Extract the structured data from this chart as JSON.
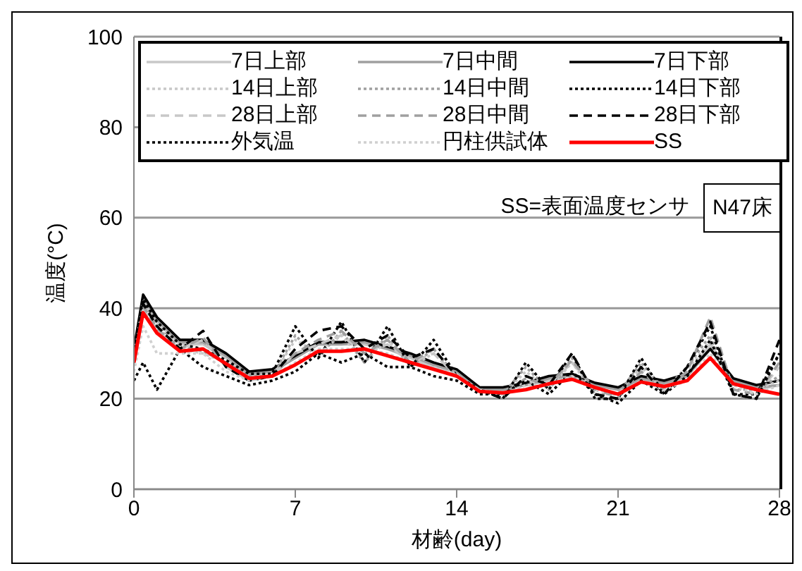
{
  "chart_data": {
    "type": "line",
    "xlabel": "材齢(day)",
    "ylabel": "温度(°C)",
    "x": [
      0,
      0.4,
      1,
      2,
      3,
      4,
      5,
      6,
      7,
      8,
      9,
      10,
      11,
      12,
      13,
      14,
      15,
      16,
      17,
      18,
      19,
      20,
      21,
      22,
      23,
      24,
      25,
      26,
      27,
      28
    ],
    "xlim": [
      0,
      28
    ],
    "xticks": [
      0,
      7,
      14,
      21,
      28
    ],
    "ylim": [
      0,
      100
    ],
    "yticks": [
      0,
      20,
      40,
      60,
      80,
      100
    ],
    "grid": "y",
    "legend": "top",
    "marker": "none",
    "annotations": [
      "SS=表面温度センサ",
      "N47床"
    ],
    "series": [
      {
        "name": "7日上部",
        "color": "#c8c8c8",
        "line_style": "solid",
        "values": [
          30,
          42,
          37,
          32,
          32,
          29,
          25,
          26,
          29,
          32,
          32,
          32,
          31,
          29,
          27,
          26,
          22,
          22,
          23,
          24,
          25,
          23,
          22,
          24,
          23,
          25,
          32,
          24,
          22,
          23
        ]
      },
      {
        "name": "7日中間",
        "color": "#a0a0a0",
        "line_style": "solid",
        "values": [
          30,
          42.5,
          37.5,
          32.5,
          32.5,
          29.5,
          25.5,
          26,
          29,
          32,
          32,
          32.5,
          31,
          29.5,
          27.5,
          26,
          22,
          22,
          23,
          24.5,
          25,
          23,
          22,
          24.5,
          23.5,
          25,
          31,
          24,
          22.5,
          23
        ]
      },
      {
        "name": "7日下部",
        "color": "#000000",
        "line_style": "solid",
        "values": [
          31,
          43,
          38,
          33,
          33,
          30,
          26,
          26.5,
          29.5,
          32.5,
          32.5,
          33,
          31.5,
          30,
          28,
          26.5,
          22.5,
          22.5,
          23.5,
          25,
          25.5,
          23.5,
          22.5,
          25,
          24,
          25.5,
          31,
          24.5,
          23,
          24
        ]
      },
      {
        "name": "14日上部",
        "color": "#c8c8c8",
        "line_style": "dotted",
        "values": [
          29,
          41,
          36,
          31,
          30,
          28,
          25,
          25,
          33,
          30,
          34,
          28,
          33,
          27,
          30,
          25,
          22,
          21,
          26,
          22,
          28,
          21,
          21,
          27,
          22,
          26,
          33,
          22,
          22,
          24
        ]
      },
      {
        "name": "14日中間",
        "color": "#a0a0a0",
        "line_style": "dotted",
        "values": [
          29,
          41.5,
          36.5,
          31.5,
          30.5,
          28,
          25,
          25,
          34,
          29,
          35,
          28,
          34,
          27,
          31,
          25,
          22,
          21,
          27,
          22,
          29,
          21,
          21,
          28,
          22,
          27,
          34,
          22,
          22,
          25
        ]
      },
      {
        "name": "14日下部",
        "color": "#000000",
        "line_style": "dotted",
        "values": [
          30,
          42,
          37,
          32,
          31,
          28.5,
          25.5,
          25.5,
          36,
          29,
          37,
          28,
          36,
          27,
          33,
          25,
          22,
          20,
          28,
          22,
          30,
          20,
          20,
          29,
          21,
          27,
          36,
          21,
          21,
          30
        ]
      },
      {
        "name": "28日上部",
        "color": "#c8c8c8",
        "line_style": "dashed",
        "values": [
          28,
          40,
          35,
          31,
          33,
          27,
          24,
          25,
          30,
          32,
          34,
          30,
          32,
          28,
          30,
          25,
          22,
          21,
          24,
          23,
          28,
          22,
          21,
          26,
          22,
          26,
          38,
          22,
          21,
          27
        ]
      },
      {
        "name": "28日中間",
        "color": "#a0a0a0",
        "line_style": "dashed",
        "values": [
          28,
          40.5,
          35.5,
          31,
          33.5,
          27,
          24,
          25,
          30,
          33,
          35,
          30,
          33,
          28,
          31,
          25,
          22,
          21,
          24.5,
          23,
          28.5,
          22,
          20.5,
          26,
          22,
          26,
          38,
          22,
          21,
          28
        ]
      },
      {
        "name": "28日下部",
        "color": "#000000",
        "line_style": "dashed",
        "values": [
          28,
          41,
          36,
          31,
          35,
          27,
          24,
          25,
          31,
          35,
          36,
          31,
          34,
          29,
          31,
          25,
          22,
          20,
          25,
          23,
          30,
          21,
          20,
          27,
          21,
          27,
          37,
          21,
          20,
          33
        ]
      },
      {
        "name": "外気温",
        "color": "#000000",
        "line_style": "dotted",
        "values": [
          24,
          28,
          22,
          31,
          27,
          25,
          23,
          24,
          26,
          30,
          28,
          30,
          27,
          27,
          25,
          24,
          21,
          21,
          24,
          21,
          26,
          21,
          19,
          24,
          21,
          25,
          33,
          21,
          20,
          30
        ]
      },
      {
        "name": "円柱供試体",
        "color": "#d0d0d0",
        "line_style": "dotted",
        "values": [
          26,
          36,
          30,
          30,
          30,
          26,
          24,
          25,
          28,
          31,
          31,
          31,
          30,
          28,
          27,
          25,
          22,
          21,
          23,
          23,
          25,
          22,
          21,
          24,
          22,
          24,
          30,
          23,
          21,
          23
        ]
      },
      {
        "name": "SS",
        "color": "#ff0000",
        "line_style": "solid",
        "values": [
          28,
          39,
          34.5,
          30.5,
          31,
          27.7,
          24.5,
          25,
          27.5,
          30.5,
          30.5,
          31,
          29.5,
          28,
          26.5,
          25,
          21.6,
          21.3,
          22,
          23.3,
          24.3,
          22.5,
          21,
          23.7,
          22.7,
          24,
          29,
          23.3,
          22,
          21
        ]
      }
    ]
  }
}
